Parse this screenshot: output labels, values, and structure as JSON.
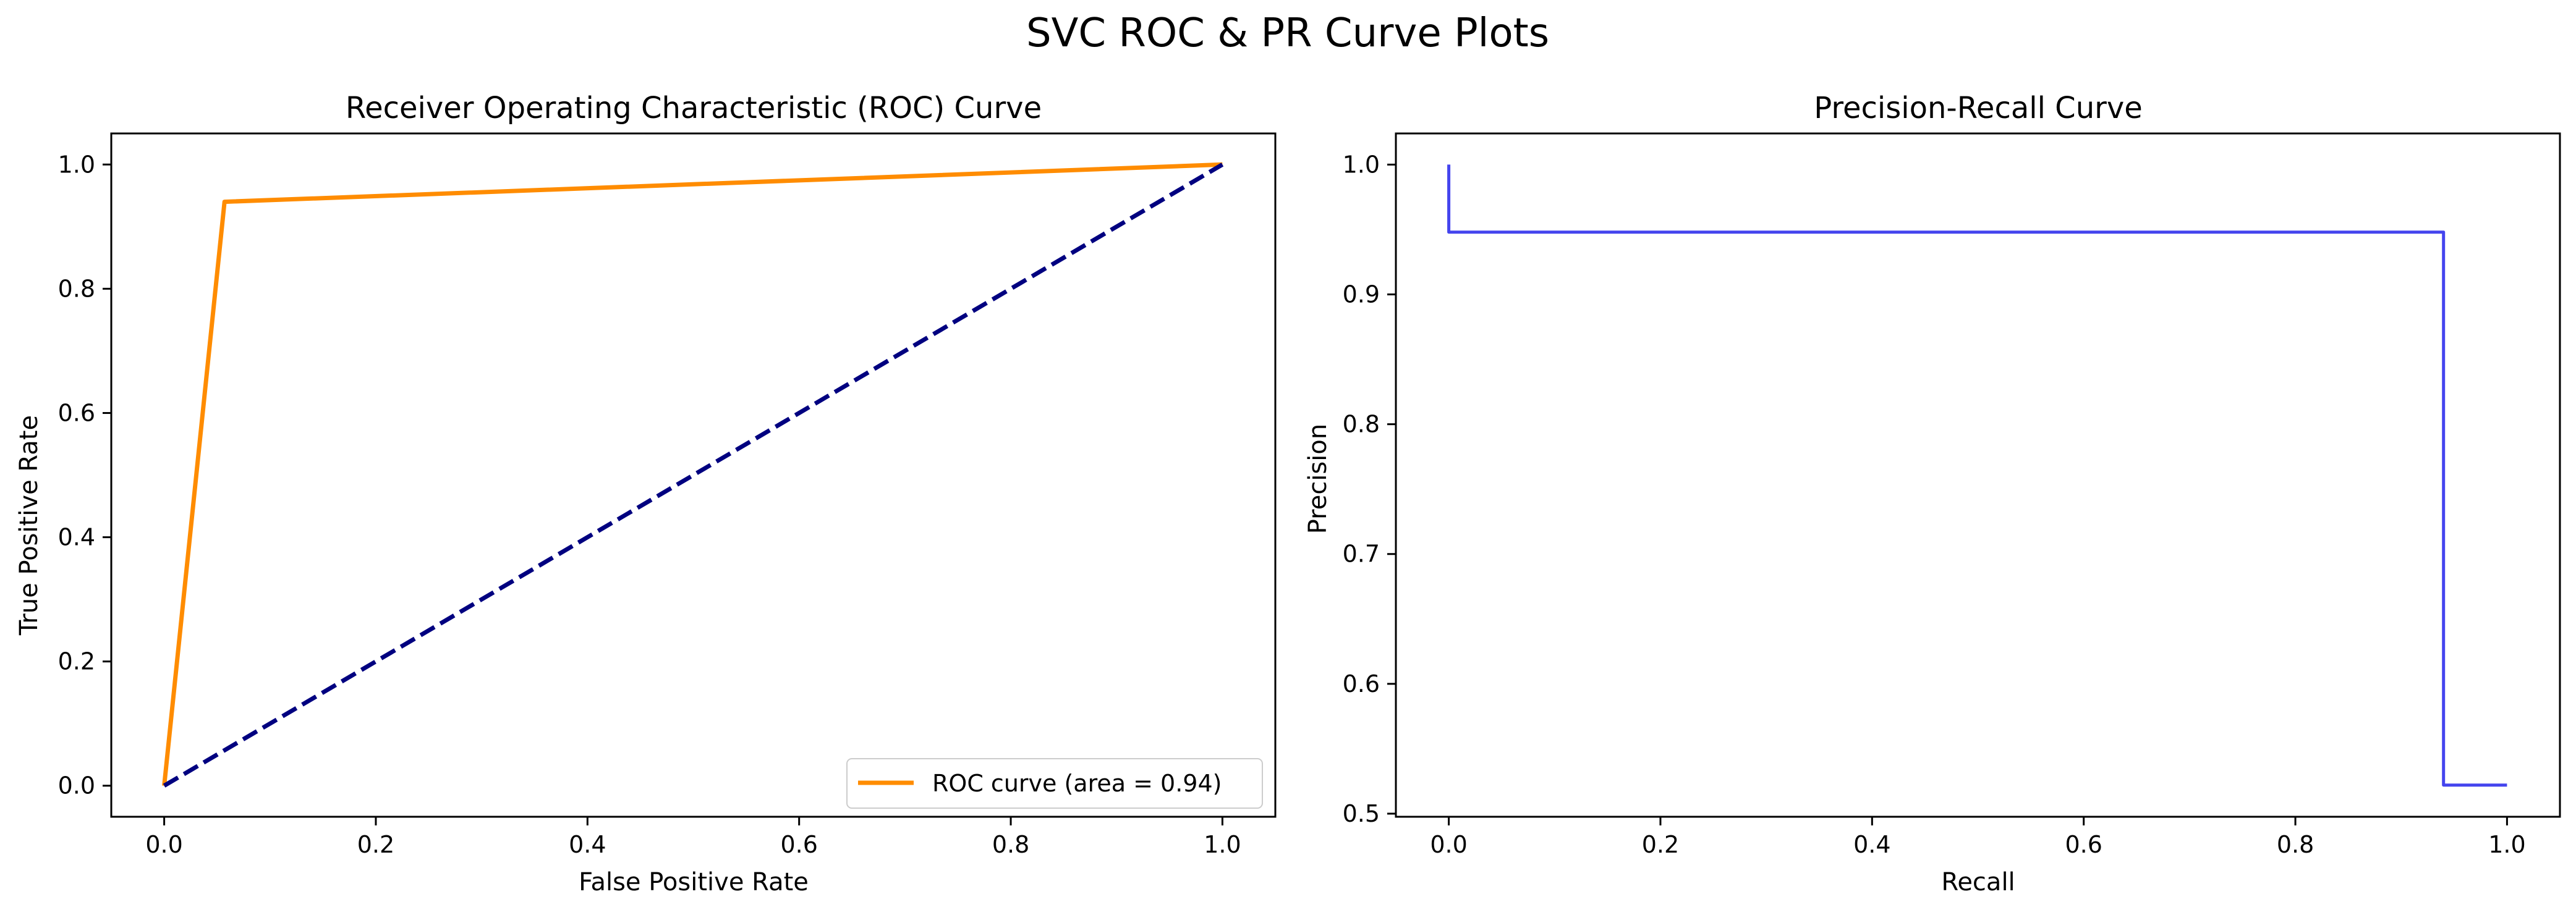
{
  "figure": {
    "suptitle": "SVC ROC & PR Curve Plots"
  },
  "chart_data": [
    {
      "type": "line",
      "title": "Receiver Operating Characteristic (ROC) Curve",
      "xlabel": "False Positive Rate",
      "ylabel": "True Positive Rate",
      "xlim": [
        -0.05,
        1.05
      ],
      "ylim": [
        -0.05,
        1.05
      ],
      "xticks": [
        0.0,
        0.2,
        0.4,
        0.6,
        0.8,
        1.0
      ],
      "yticks": [
        0.0,
        0.2,
        0.4,
        0.6,
        0.8,
        1.0
      ],
      "xtick_labels": [
        "0.0",
        "0.2",
        "0.4",
        "0.6",
        "0.8",
        "1.0"
      ],
      "ytick_labels": [
        "0.0",
        "0.2",
        "0.4",
        "0.6",
        "0.8",
        "1.0"
      ],
      "grid": false,
      "legend": {
        "placement": "lower-right",
        "entries": [
          "ROC curve (area = 0.94)"
        ]
      },
      "series": [
        {
          "name": "ROC curve (area = 0.94)",
          "color": "#ff8c00",
          "style": "solid",
          "x": [
            0.0,
            0.057,
            1.0
          ],
          "y": [
            0.0,
            0.94,
            1.0
          ]
        },
        {
          "color": "#000080",
          "style": "dashed",
          "x": [
            0.0,
            1.0
          ],
          "y": [
            0.0,
            1.0
          ]
        }
      ]
    },
    {
      "type": "line",
      "title": "Precision-Recall Curve",
      "xlabel": "Recall",
      "ylabel": "Precision",
      "xlim": [
        -0.05,
        1.05
      ],
      "ylim": [
        0.4976,
        1.024
      ],
      "xticks": [
        0.0,
        0.2,
        0.4,
        0.6,
        0.8,
        1.0
      ],
      "yticks": [
        0.5,
        0.6,
        0.7,
        0.8,
        0.9,
        1.0
      ],
      "xtick_labels": [
        "0.0",
        "0.2",
        "0.4",
        "0.6",
        "0.8",
        "1.0"
      ],
      "ytick_labels": [
        "0.5",
        "0.6",
        "0.7",
        "0.8",
        "0.9",
        "1.0"
      ],
      "grid": false,
      "series": [
        {
          "color": "#4444ee",
          "style": "step",
          "x": [
            0.0,
            0.0,
            0.94,
            0.94,
            1.0
          ],
          "y": [
            1.0,
            0.948,
            0.948,
            0.522,
            0.522
          ]
        }
      ]
    }
  ]
}
